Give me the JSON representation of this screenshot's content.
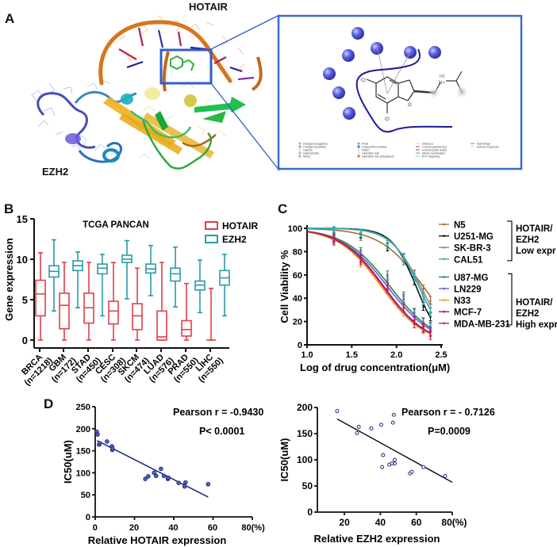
{
  "figure": {
    "panels": {
      "A": {
        "letter": "A",
        "label_rna": "HOTAIR",
        "label_protein": "EZH2",
        "inset": {
          "atoms": {
            "cl_top": "Cl",
            "cl_bottom": "Cl",
            "o": "O",
            "nh": "N+",
            "h2": "H2"
          },
          "legend": [
            [
              "Charged (negative)",
              "Polar",
              "Distance",
              "Salt bridge"
            ],
            [
              "Charged (positive)",
              "Unspecified residue",
              "H-bond (backbone)",
              "Solvent exposure"
            ],
            [
              "Glycine",
              "Water",
              "H-bond (side chain)",
              ""
            ],
            [
              "Hydrophobic",
              "Hydration site",
              "Metal coordination",
              ""
            ],
            [
              "Metal",
              "Hydration site (displaced)",
              "Pi-Pi stacking",
              ""
            ]
          ]
        }
      },
      "B": {
        "letter": "B"
      },
      "C": {
        "letter": "C"
      },
      "D": {
        "letter": "D"
      }
    }
  },
  "chart_data": [
    {
      "panel": "B",
      "type": "box",
      "title": "TCGA PANCAN",
      "xlabel": "",
      "ylabel": "Gene expression",
      "ylim": [
        0,
        15
      ],
      "yticks": [
        0,
        5,
        10,
        15
      ],
      "categories": [
        "BRCA\n(n=1218)",
        "GBM\n(n=172)",
        "STAD\n(n=450)",
        "CESC\n(n=308)",
        "SKCM\n(n=474)",
        "LUAD\n(n=576)",
        "PRAD\n(n=550)",
        "LIHC\n(n=550)"
      ],
      "category_names": [
        "BRCA",
        "GBM",
        "STAD",
        "CESC",
        "SKCM",
        "LUAD",
        "PRAD",
        "LIHC"
      ],
      "category_n": [
        "(n=1218)",
        "(n=172)",
        "(n=450)",
        "(n=308)",
        "(n=474)",
        "(n=576)",
        "(n=550)",
        "(n=550)"
      ],
      "legend": [
        "HOTAIR",
        "EZH2"
      ],
      "series": [
        {
          "name": "HOTAIR",
          "color": "#e0404a",
          "boxes": [
            {
              "min": 0,
              "q1": 3.0,
              "median": 5.7,
              "q3": 7.4,
              "max": 10.8
            },
            {
              "min": 0,
              "q1": 1.4,
              "median": 4.3,
              "q3": 5.8,
              "max": 9.6
            },
            {
              "min": 0,
              "q1": 2.1,
              "median": 4.0,
              "q3": 5.8,
              "max": 9.6
            },
            {
              "min": 0,
              "q1": 2.0,
              "median": 3.6,
              "q3": 4.8,
              "max": 9.6
            },
            {
              "min": 0,
              "q1": 1.3,
              "median": 3.0,
              "q3": 4.5,
              "max": 8.9
            },
            {
              "min": 0,
              "q1": 0,
              "median": 0.4,
              "q3": 3.6,
              "max": 9.6
            },
            {
              "min": 0,
              "q1": 0.5,
              "median": 1.3,
              "q3": 2.4,
              "max": 7.0
            },
            {
              "min": 0,
              "q1": 0,
              "median": 0,
              "q3": 0,
              "max": 6.4
            }
          ]
        },
        {
          "name": "EZH2",
          "color": "#2a9aa8",
          "boxes": [
            {
              "min": 3.6,
              "q1": 7.8,
              "median": 8.5,
              "q3": 9.2,
              "max": 12.4
            },
            {
              "min": 4.0,
              "q1": 8.6,
              "median": 9.2,
              "q3": 9.8,
              "max": 10.9
            },
            {
              "min": 3.0,
              "q1": 8.2,
              "median": 8.9,
              "q3": 9.4,
              "max": 10.6
            },
            {
              "min": 5.1,
              "q1": 9.6,
              "median": 10.0,
              "q3": 10.5,
              "max": 12.3
            },
            {
              "min": 5.5,
              "q1": 8.3,
              "median": 8.8,
              "q3": 9.4,
              "max": 11.7
            },
            {
              "min": 4.1,
              "q1": 7.3,
              "median": 8.2,
              "q3": 8.9,
              "max": 11.5
            },
            {
              "min": 3.4,
              "q1": 6.2,
              "median": 6.8,
              "q3": 7.3,
              "max": 9.9
            },
            {
              "min": 3.0,
              "q1": 6.8,
              "median": 7.7,
              "q3": 8.6,
              "max": 10.6
            }
          ]
        }
      ]
    },
    {
      "panel": "C",
      "type": "line",
      "title": "",
      "xlabel": "Log of drug concentration(μM)",
      "ylabel": "Cell Viability %",
      "xlim": [
        1.0,
        2.5
      ],
      "ylim": [
        0,
        100
      ],
      "xticks": [
        "1.0",
        "1.5",
        "2.0",
        "2.5"
      ],
      "yticks": [
        "0",
        "20",
        "40",
        "60",
        "80",
        "100"
      ],
      "x": [
        1.3,
        1.6,
        1.9,
        2.08,
        2.2,
        2.3,
        2.38
      ],
      "legend_groups": [
        {
          "label_lines": [
            "HOTAIR/",
            "EZH2",
            "Low expr"
          ],
          "members": [
            "N5",
            "U251-MG",
            "SK-BR-3",
            "CAL51"
          ]
        },
        {
          "label_lines": [
            "HOTAIR/",
            "EZH2",
            "High expr"
          ],
          "members": [
            "U87-MG",
            "LN229",
            "N33",
            "MCF-7",
            "MDA-MB-231"
          ]
        }
      ],
      "series": [
        {
          "name": "N5",
          "color": "#a0703a",
          "ic50_log": 2.3,
          "hill": 1.8,
          "values": [
            97,
            93,
            84,
            72,
            61,
            48,
            38
          ]
        },
        {
          "name": "U251-MG",
          "color": "#111111",
          "ic50_log": 2.22,
          "hill": 3.2,
          "values": [
            98,
            95,
            84,
            75,
            55,
            33,
            24
          ]
        },
        {
          "name": "SK-BR-3",
          "color": "#8a8a8a",
          "ic50_log": 2.27,
          "hill": 2.6,
          "values": [
            98,
            96,
            86,
            75,
            60,
            42,
            32
          ]
        },
        {
          "name": "CAL51",
          "color": "#2ab0b8",
          "ic50_log": 2.25,
          "hill": 2.8,
          "values": [
            98,
            96,
            86,
            74,
            58,
            38,
            28
          ]
        },
        {
          "name": "U87-MG",
          "color": "#2a8a3a",
          "ic50_log": 1.93,
          "hill": 1.7,
          "values": [
            93,
            80,
            60,
            42,
            28,
            20,
            16
          ]
        },
        {
          "name": "LN229",
          "color": "#6a5ad8",
          "ic50_log": 1.9,
          "hill": 1.7,
          "values": [
            92,
            78,
            55,
            40,
            27,
            19,
            15
          ]
        },
        {
          "name": "N33",
          "color": "#f0a030",
          "ic50_log": 1.83,
          "hill": 1.8,
          "values": [
            90,
            70,
            48,
            28,
            18,
            13,
            10
          ]
        },
        {
          "name": "MCF-7",
          "color": "#8a1a8a",
          "ic50_log": 1.86,
          "hill": 1.8,
          "values": [
            91,
            74,
            50,
            32,
            21,
            15,
            11
          ]
        },
        {
          "name": "MDA-MB-231",
          "color": "#c8204a",
          "ic50_log": 1.85,
          "hill": 1.8,
          "values": [
            89,
            72,
            48,
            32,
            18,
            14,
            8
          ]
        }
      ]
    },
    {
      "panel": "D-left",
      "type": "scatter",
      "title": "",
      "xlabel": "Relative HOTAIR expression",
      "ylabel": "IC50(uM)",
      "xlim": [
        0,
        80
      ],
      "ylim": [
        0,
        250
      ],
      "xticks": [
        "0",
        "20",
        "40",
        "60",
        "80(%)"
      ],
      "yticks": [
        "0",
        "50",
        "100",
        "150",
        "200",
        "250"
      ],
      "annotations": [
        "Pearson r = -0.9430",
        "P< 0.0001"
      ],
      "fit_line": {
        "x": [
          1,
          57.5
        ],
        "y": [
          173,
          45
        ]
      },
      "points": [
        [
          0.8,
          193
        ],
        [
          1.2,
          187
        ],
        [
          2.0,
          164
        ],
        [
          2.3,
          167
        ],
        [
          6,
          171
        ],
        [
          8.5,
          160
        ],
        [
          8.7,
          152
        ],
        [
          8.8,
          155
        ],
        [
          25.5,
          86
        ],
        [
          27,
          92
        ],
        [
          30,
          100
        ],
        [
          31,
          93
        ],
        [
          33.5,
          109
        ],
        [
          35,
          93
        ],
        [
          37,
          86
        ],
        [
          37.2,
          89
        ],
        [
          42.5,
          77
        ],
        [
          45.5,
          69
        ],
        [
          46,
          78
        ],
        [
          57.5,
          74
        ]
      ],
      "color": "#1e2a80"
    },
    {
      "panel": "D-right",
      "type": "scatter",
      "title": "",
      "xlabel": "Relative EZH2 expression",
      "ylabel": "IC50(uM)",
      "xlim": [
        5,
        80
      ],
      "ylim": [
        0,
        200
      ],
      "xticks": [
        "20",
        "40",
        "60",
        "80(%)"
      ],
      "yticks": [
        "0",
        "50",
        "100",
        "150",
        "200"
      ],
      "annotations": [
        "Pearson r = - 0.7126",
        "P=0.0009"
      ],
      "fit_line": {
        "x": [
          16,
          80
        ],
        "y": [
          178,
          57
        ]
      },
      "points": [
        [
          16,
          193
        ],
        [
          27,
          151
        ],
        [
          28,
          163
        ],
        [
          35,
          160
        ],
        [
          40.5,
          167
        ],
        [
          47,
          171
        ],
        [
          47.5,
          186
        ],
        [
          41.5,
          109
        ],
        [
          41,
          86
        ],
        [
          45,
          91
        ],
        [
          46.5,
          93
        ],
        [
          48,
          93
        ],
        [
          48,
          100
        ],
        [
          56.5,
          74
        ],
        [
          57.5,
          77
        ],
        [
          64,
          86
        ],
        [
          76,
          69
        ]
      ],
      "color": "#1e2a80"
    }
  ]
}
